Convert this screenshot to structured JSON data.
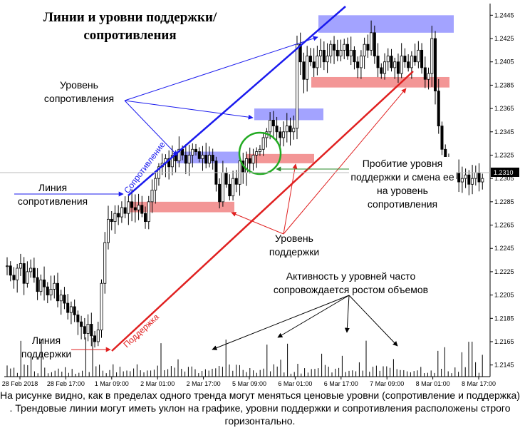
{
  "title": "Линии и уровни поддержки/сопротивления",
  "annotations": {
    "resistance_level": "Уровень сопротивления",
    "resistance_line": "Линия сопротивления",
    "support_line": "Линия поддержки",
    "support_level": "Уровень поддержки",
    "breakout": "Пробитие уровня поддержки и смена ее на уровень сопротивления",
    "volume_note": "Активность у уровней часто сопровождается ростом объемов",
    "resistance_trend_label": "Сопротивление",
    "support_trend_label": "Поддержка"
  },
  "caption": "На рисунке видно, как в пределах одного тренда могут меняться ценовые уровни (сопротивление и поддержка) . Трендовые линии могут иметь уклон на графике, уровни поддержки и сопротивления расположены строго горизонтально.",
  "colors": {
    "resistance": "#1a1aee",
    "resistance_zone": "#9999ff",
    "support": "#e02020",
    "support_zone": "#f28b8b",
    "breakout_circle": "#22aa22",
    "breakout_arrow": "#2a8a2a",
    "candle": "#000000",
    "price_line": "#bbbbbb"
  },
  "chart_data": {
    "type": "candlestick",
    "instrument_axis": {
      "ylim": [
        1.2135,
        1.2455
      ],
      "ticks": [
        "1.2445",
        "1.2425",
        "1.2405",
        "1.2385",
        "1.2365",
        "1.2345",
        "1.2325",
        "1.2305",
        "1.2285",
        "1.2265",
        "1.2245",
        "1.2225",
        "1.2205",
        "1.2185",
        "1.2165",
        "1.2145"
      ],
      "current_price": "1.2310"
    },
    "x_labels": [
      "28 Feb 2018",
      "28 Feb 17:00",
      "1 Mar 09:00",
      "2 Mar 01:00",
      "2 Mar 17:00",
      "5 Mar 09:00",
      "6 Mar 01:00",
      "6 Mar 17:00",
      "7 Mar 09:00",
      "8 Mar 01:00",
      "8 Mar 17:00"
    ],
    "close_path": [
      1.223,
      1.2222,
      1.2218,
      1.2228,
      1.2232,
      1.2215,
      1.2225,
      1.2228,
      1.222,
      1.2208,
      1.2218,
      1.2212,
      1.2205,
      1.221,
      1.2215,
      1.22,
      1.2205,
      1.2198,
      1.219,
      1.2195,
      1.2188,
      1.2182,
      1.2178,
      1.2172,
      1.218,
      1.217,
      1.2165,
      1.2175,
      1.2215,
      1.225,
      1.227,
      1.2268,
      1.2275,
      1.2272,
      1.228,
      1.2275,
      1.2285,
      1.228,
      1.2278,
      1.2282,
      1.2275,
      1.2268,
      1.2285,
      1.2295,
      1.2305,
      1.2315,
      1.2318,
      1.2322,
      1.2315,
      1.2325,
      1.232,
      1.233,
      1.2325,
      1.2318,
      1.2325,
      1.233,
      1.2328,
      1.2322,
      1.2325,
      1.2318,
      1.2325,
      1.232,
      1.23,
      1.2285,
      1.231,
      1.23,
      1.229,
      1.2305,
      1.23,
      1.232,
      1.231,
      1.2322,
      1.2318,
      1.2325,
      1.2328,
      1.233,
      1.234,
      1.2345,
      1.2355,
      1.235,
      1.2345,
      1.234,
      1.2345,
      1.235,
      1.2345,
      1.2348,
      1.242,
      1.2405,
      1.239,
      1.241,
      1.2405,
      1.24,
      1.241,
      1.2415,
      1.2405,
      1.241,
      1.242,
      1.2415,
      1.241,
      1.2415,
      1.242,
      1.241,
      1.2415,
      1.2405,
      1.24,
      1.241,
      1.242,
      1.2415,
      1.243,
      1.241,
      1.24,
      1.2395,
      1.2405,
      1.241,
      1.24,
      1.2405,
      1.2395,
      1.241,
      1.2405,
      1.24,
      1.241,
      1.2405,
      1.2415,
      1.24,
      1.239,
      1.2395,
      1.2425,
      1.238,
      1.235,
      1.233,
      1.2318,
      1.231,
      1.2305,
      1.231,
      1.2302,
      1.2305,
      1.2308,
      1.23,
      1.2305,
      1.231,
      1.2302,
      1.2305
    ],
    "resistance_zones": [
      [
        1.243,
        1.2445
      ],
      [
        1.2355,
        1.2365
      ],
      [
        1.2318,
        1.2328
      ]
    ],
    "support_zones": [
      [
        1.2383,
        1.2392
      ],
      [
        1.2318,
        1.2326
      ],
      [
        1.2276,
        1.2285
      ]
    ],
    "volume_bars": 140
  }
}
